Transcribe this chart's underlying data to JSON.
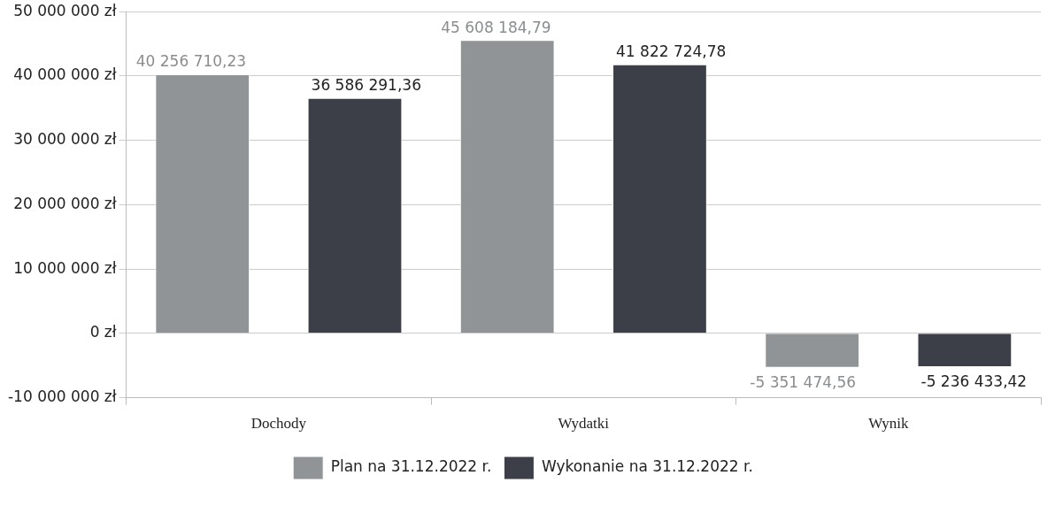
{
  "chart_data": {
    "type": "bar",
    "categories": [
      "Dochody",
      "Wydatki",
      "Wynik"
    ],
    "series": [
      {
        "name": "Plan na 31.12.2022 r.",
        "color": "#919496",
        "values": [
          40256710.23,
          45608184.79,
          -5351474.56
        ],
        "value_labels": [
          "40 256 710,23",
          "45 608 184,79",
          "-5 351 474,56"
        ]
      },
      {
        "name": "Wykonanie na 31.12.2022 r.",
        "color": "#3c3e48",
        "values": [
          36586291.36,
          41822724.78,
          -5236433.42
        ],
        "value_labels": [
          "36 586 291,36",
          "41 822 724,78",
          "-5 236 433,42"
        ]
      }
    ],
    "ylim": [
      -10000000,
      50000000
    ],
    "yticks": [
      {
        "value": -10000000,
        "label": "-10 000 000 zł"
      },
      {
        "value": 0,
        "label": "0 zł"
      },
      {
        "value": 10000000,
        "label": "10 000 000 zł"
      },
      {
        "value": 20000000,
        "label": "20 000 000 zł"
      },
      {
        "value": 30000000,
        "label": "30 000 000 zł"
      },
      {
        "value": 40000000,
        "label": "40 000 000 zł"
      },
      {
        "value": 50000000,
        "label": "50 000 000 zł"
      }
    ],
    "grid": "y",
    "legend": "bottom"
  }
}
